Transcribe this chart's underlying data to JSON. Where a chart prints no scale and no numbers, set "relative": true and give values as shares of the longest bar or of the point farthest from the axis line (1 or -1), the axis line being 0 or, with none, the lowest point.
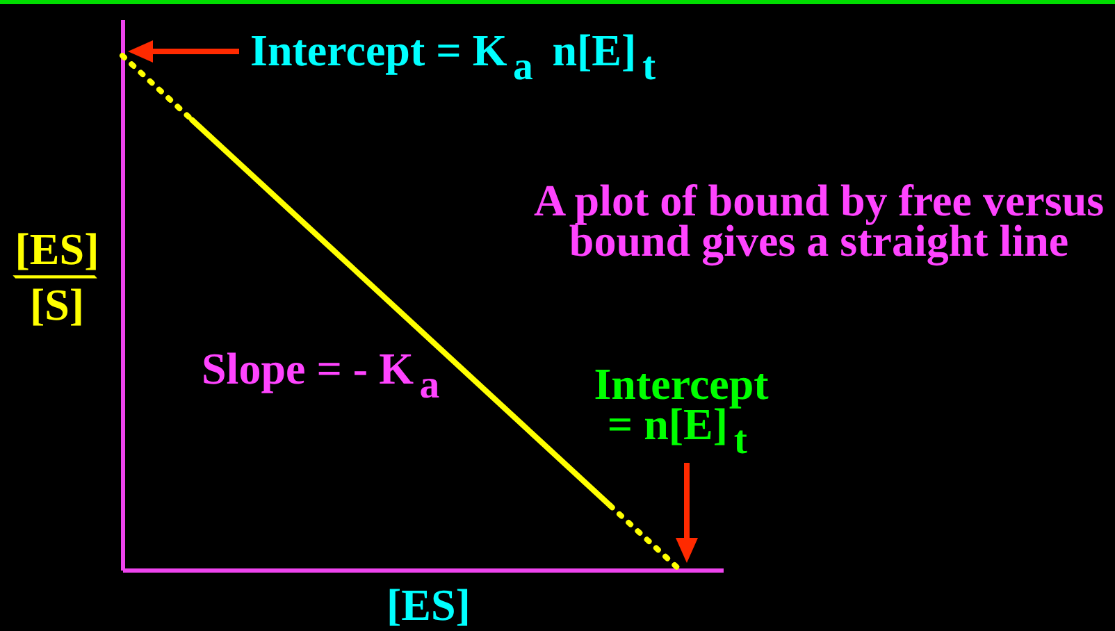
{
  "chart_data": {
    "type": "line",
    "relative": true,
    "xlabel": "[ES]",
    "ylabel": "[ES]/[S]",
    "annotations": [
      "Intercept = K$_{a}$ n[E]$_{t}$",
      "A plot of bound by free versus bound gives a straight line",
      "Slope = - K$_{a}$",
      {
        "text": "Intercept = n[E]$_{t}$",
        "y": 0
      }
    ],
    "categories": [
      null,
      null,
      null,
      null,
      null,
      null,
      null,
      null,
      null
    ],
    "series": [
      {
        "color": "#ffff00",
        "line_style": "dotted",
        "values": [
          1,
          0.875,
          null,
          null,
          null,
          null,
          null,
          null,
          null
        ]
      },
      {
        "color": "#ffff00",
        "line_style": "solid",
        "values": [
          null,
          0.875,
          0.75,
          0.625,
          0.5,
          0.375,
          0.25,
          0.125,
          null
        ]
      },
      {
        "color": "#ffff00",
        "line_style": "dotted",
        "values": [
          null,
          null,
          null,
          null,
          null,
          null,
          null,
          0.125,
          0
        ]
      }
    ]
  }
}
